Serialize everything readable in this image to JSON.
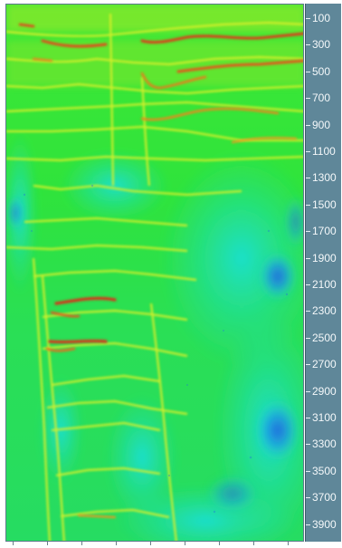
{
  "axis": {
    "labels": [
      "100",
      "300",
      "500",
      "700",
      "900",
      "1100",
      "1300",
      "1500",
      "1700",
      "1900",
      "2100",
      "2300",
      "2500",
      "2700",
      "2900",
      "3100",
      "3300",
      "3500",
      "3700",
      "3900"
    ]
  },
  "colors": {
    "background_green": "#2fe03a",
    "cyan": "#21e6c8",
    "blue": "#1f6fe0",
    "yellow": "#d8ef2a",
    "orange": "#f08a1a",
    "red": "#d8331a",
    "axis_panel": "#5f8799"
  }
}
